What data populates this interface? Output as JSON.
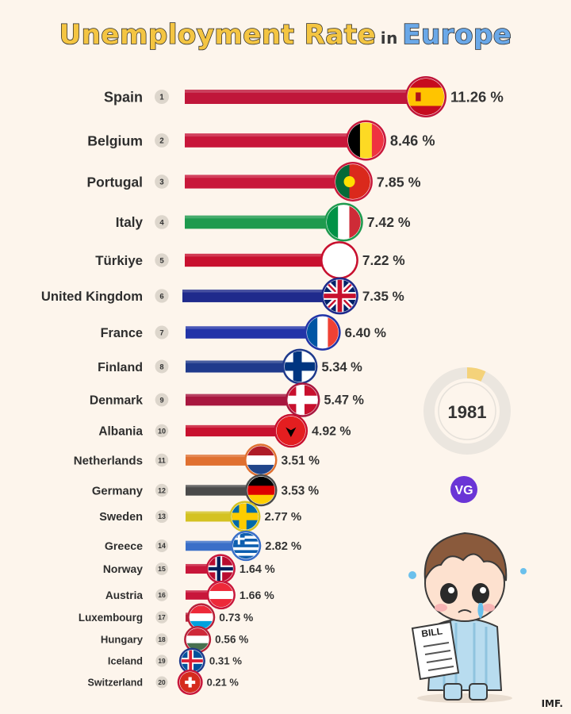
{
  "title": {
    "part1": "Unemployment Rate",
    "part2": "in",
    "part3": "Europe"
  },
  "year": "1981",
  "year_progress": 0.07,
  "logo_text": "VG",
  "source": "IMF.",
  "bill_text": "BILL",
  "chart_data": {
    "type": "bar",
    "orientation": "horizontal",
    "title": "Unemployment Rate in Europe",
    "unit": "%",
    "categories": [
      "Spain",
      "Belgium",
      "Portugal",
      "Italy",
      "Türkiye",
      "United Kingdom",
      "France",
      "Finland",
      "Denmark",
      "Albania",
      "Netherlands",
      "Germany",
      "Sweden",
      "Greece",
      "Norway",
      "Austria",
      "Luxembourg",
      "Hungary",
      "Iceland",
      "Switzerland"
    ],
    "ranks": [
      1,
      2,
      3,
      4,
      5,
      6,
      7,
      8,
      9,
      10,
      11,
      12,
      13,
      14,
      15,
      16,
      17,
      18,
      19,
      20
    ],
    "values": [
      11.26,
      8.46,
      7.85,
      7.42,
      7.22,
      7.35,
      6.4,
      5.34,
      5.47,
      4.92,
      3.51,
      3.53,
      2.77,
      2.82,
      1.64,
      1.66,
      0.73,
      0.56,
      0.31,
      0.21
    ],
    "value_labels": [
      "11.26 %",
      "8.46 %",
      "7.85 %",
      "7.42 %",
      "7.22 %",
      "7.35 %",
      "6.40 %",
      "5.34 %",
      "5.47 %",
      "4.92 %",
      "3.51 %",
      "3.53 %",
      "2.77 %",
      "2.82 %",
      "1.64 %",
      "1.66 %",
      "0.73 %",
      "0.56 %",
      "0.31 %",
      "0.21 %"
    ],
    "bar_colors": [
      "#c0163a",
      "#c8163a",
      "#c8183a",
      "#1e9a4e",
      "#c8102e",
      "#1f2a8c",
      "#2234a8",
      "#1f3a8c",
      "#a8173f",
      "#c8102e",
      "#e07030",
      "#4a4a4a",
      "#d4c221",
      "#3a6fc8",
      "#c8163a",
      "#c8163a",
      "#b8213a",
      "#b8213a",
      "#1f3a8c",
      "#c8163a"
    ],
    "flag_icons": [
      "spain-flag-icon",
      "belgium-flag-icon",
      "portugal-flag-icon",
      "italy-flag-icon",
      "turkiye-flag-icon",
      "united-kingdom-flag-icon",
      "france-flag-icon",
      "finland-flag-icon",
      "denmark-flag-icon",
      "albania-flag-icon",
      "netherlands-flag-icon",
      "germany-flag-icon",
      "sweden-flag-icon",
      "greece-flag-icon",
      "norway-flag-icon",
      "austria-flag-icon",
      "luxembourg-flag-icon",
      "hungary-flag-icon",
      "iceland-flag-icon",
      "switzerland-flag-icon"
    ],
    "grid": false,
    "legend": "none"
  }
}
